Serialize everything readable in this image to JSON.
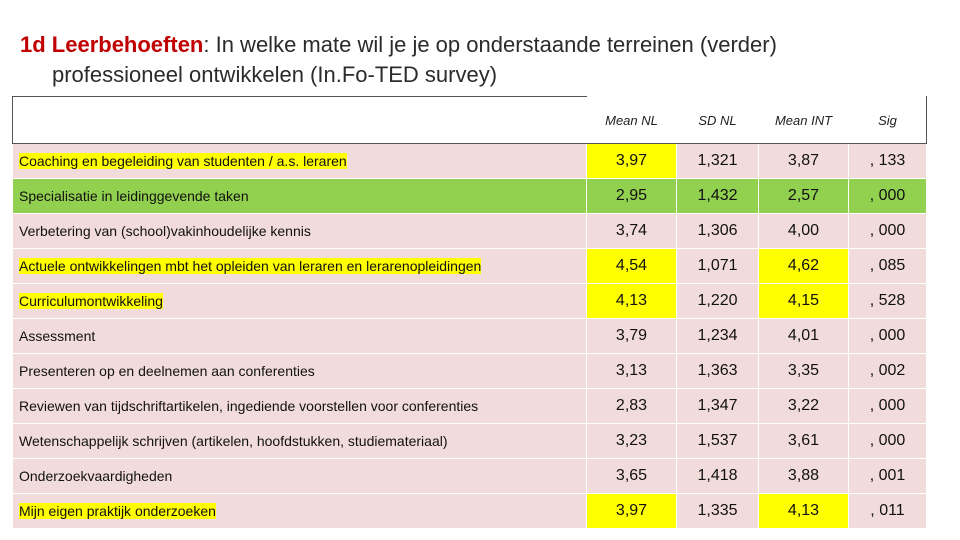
{
  "title": {
    "prefix": "1d Leerbehoeften",
    "line1": ": In welke mate wil je je op onderstaande terreinen (verder)",
    "line2": "professioneel ontwikkelen (In.Fo-TED survey)"
  },
  "columns": [
    "Mean NL",
    "SD NL",
    "Mean INT",
    "Sig"
  ],
  "rows": [
    {
      "label": "Coaching en begeleiding van studenten / a.s. leraren",
      "mean_nl": "3,97",
      "sd_nl": "1,321",
      "mean_int": "3,87",
      "sig": ", 133"
    },
    {
      "label": "Specialisatie in leidinggevende  taken",
      "mean_nl": "2,95",
      "sd_nl": "1,432",
      "mean_int": "2,57",
      "sig": ", 000"
    },
    {
      "label": "Verbetering van (school)vakinhoudelijke kennis",
      "mean_nl": "3,74",
      "sd_nl": "1,306",
      "mean_int": "4,00",
      "sig": ", 000"
    },
    {
      "label": "Actuele ontwikkelingen mbt het opleiden van leraren en lerarenopleidingen",
      "mean_nl": "4,54",
      "sd_nl": "1,071",
      "mean_int": "4,62",
      "sig": ", 085"
    },
    {
      "label": "Curriculumontwikkeling",
      "mean_nl": "4,13",
      "sd_nl": "1,220",
      "mean_int": "4,15",
      "sig": ", 528"
    },
    {
      "label": "Assessment",
      "mean_nl": "3,79",
      "sd_nl": "1,234",
      "mean_int": "4,01",
      "sig": ", 000"
    },
    {
      "label": "Presenteren op en deelnemen aan conferenties",
      "mean_nl": "3,13",
      "sd_nl": "1,363",
      "mean_int": "3,35",
      "sig": ", 002"
    },
    {
      "label": "Reviewen van tijdschriftartikelen, ingediende voorstellen voor conferenties",
      "mean_nl": "2,83",
      "sd_nl": "1,347",
      "mean_int": "3,22",
      "sig": ", 000"
    },
    {
      "label": "Wetenschappelijk schrijven (artikelen, hoofdstukken, studiemateriaal)",
      "mean_nl": "3,23",
      "sd_nl": "1,537",
      "mean_int": "3,61",
      "sig": ", 000"
    },
    {
      "label": "Onderzoekvaardigheden",
      "mean_nl": "3,65",
      "sd_nl": "1,418",
      "mean_int": "3,88",
      "sig": ", 001"
    },
    {
      "label": "Mijn eigen praktijk onderzoeken",
      "mean_nl": "3,97",
      "sd_nl": "1,335",
      "mean_int": "4,13",
      "sig": ", 011"
    }
  ],
  "colors": {
    "row_fill": "#f2dcdb",
    "green_fill": "#92d050",
    "highlight": "#ffff00",
    "title_accent": "#c00000"
  }
}
